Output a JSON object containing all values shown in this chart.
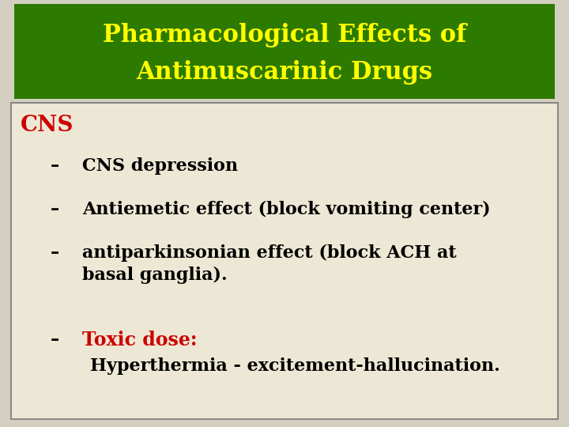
{
  "title_line1": "Pharmacological Effects of",
  "title_line2": "Antimuscarinic Drugs",
  "title_bg_color": "#2d7a00",
  "title_text_color": "#ffff00",
  "body_bg_color": "#ede8d5",
  "border_color": "#888888",
  "outer_bg_color": "#d4cfc0",
  "cns_label": "CNS",
  "cns_color": "#cc0000",
  "bullet_color": "#000000",
  "bullet1": "CNS depression",
  "bullet2": "Antiemetic effect (block vomiting center)",
  "bullet3a": "antiparkinsonian effect (block ACH at",
  "bullet3b": "basal ganglia).",
  "toxic_label": "Toxic dose:",
  "toxic_color": "#cc0000",
  "toxic_sub": "Hyperthermia - excitement-hallucination.",
  "toxic_sub_color": "#000000"
}
